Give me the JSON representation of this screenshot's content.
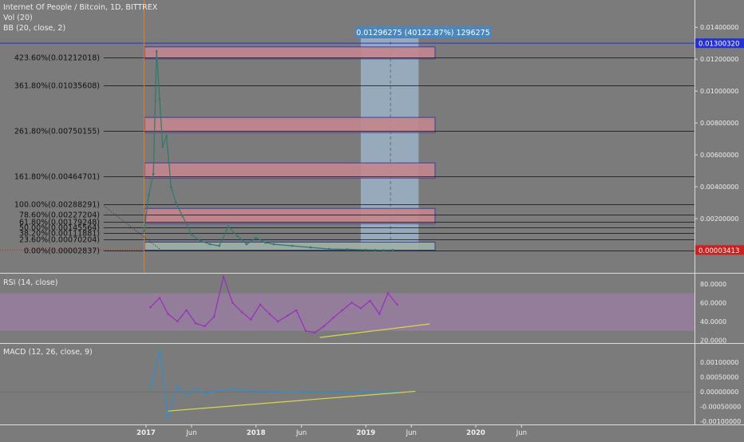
{
  "header": {
    "title": "Internet Of People / Bitcoin, 1D, BITTREX",
    "indicators": [
      "Vol (20)",
      "BB (20, close, 2)"
    ]
  },
  "measure_label": "0.01296275 (40122.87%) 1296275",
  "price_labels": {
    "top_line": "0.01300320",
    "current": "0.00003413"
  },
  "colors": {
    "background": "#7b7b7b",
    "fib_box": "#c4868e",
    "box_outline": "#2f3b9a",
    "measure_region": "#9bb3c7",
    "rsi_band": "#9e7faa",
    "rsi_line": "#9a2cc0",
    "trend_line": "#d8d84a",
    "price_candles": "#2c7a6e",
    "top_line": "#2431d6",
    "current_badge": "#cf1f1f",
    "measure_badge": "#4a86c0"
  },
  "chart_data": [
    {
      "type": "line",
      "panel": "price",
      "title": "Internet Of People / Bitcoin, 1D, BITTREX",
      "ytick_labels": [
        "0.01400000",
        "0.01200000",
        "0.01000000",
        "0.00800000",
        "0.00600000",
        "0.00400000",
        "0.00200000"
      ],
      "ylim": [
        0,
        0.0145
      ],
      "x_tick_labels": [
        "2017",
        "Jun",
        "2018",
        "Jun",
        "2019",
        "Jun",
        "2020",
        "Jun"
      ],
      "fib_levels": [
        {
          "label": "423.60%(0.01212018)",
          "value": 0.01212018
        },
        {
          "label": "361.80%(0.01035608)",
          "value": 0.01035608
        },
        {
          "label": "261.80%(0.00750155)",
          "value": 0.00750155
        },
        {
          "label": "161.80%(0.00464701)",
          "value": 0.00464701
        },
        {
          "label": "100.00%(0.00288291)",
          "value": 0.00288291
        },
        {
          "label": "78.60%(0.00227204)",
          "value": 0.00227204
        },
        {
          "label": "61.80%(0.00179248)",
          "value": 0.00179248
        },
        {
          "label": "50.00%(0.00145564)",
          "value": 0.00145564
        },
        {
          "label": "38.20%(0.00111881)",
          "value": 0.00111881
        },
        {
          "label": "23.60%(0.00070204)",
          "value": 0.00070204
        },
        {
          "label": "0.00%(0.00002837)",
          "value": 2.837e-05
        }
      ],
      "x": [
        "2016-12-25",
        "2017-01-10",
        "2017-01-25",
        "2017-02-05",
        "2017-02-15",
        "2017-02-25",
        "2017-03-10",
        "2017-03-25",
        "2017-04-10",
        "2017-05-01",
        "2017-06-01",
        "2017-07-01",
        "2017-08-01",
        "2017-09-01",
        "2017-10-01",
        "2017-11-01",
        "2017-12-01",
        "2018-01-01",
        "2018-02-01",
        "2018-03-01",
        "2018-05-01",
        "2018-07-01",
        "2018-09-01",
        "2018-11-01",
        "2019-01-01",
        "2019-02-01",
        "2019-03-01",
        "2019-04-01"
      ],
      "values": [
        0.0012,
        0.0035,
        0.0048,
        0.0125,
        0.0095,
        0.0065,
        0.0072,
        0.004,
        0.003,
        0.0022,
        0.001,
        0.0006,
        0.0004,
        0.0003,
        0.0015,
        0.0009,
        0.0004,
        0.0008,
        0.0005,
        0.0004,
        0.0003,
        0.0002,
        0.0001,
        8e-05,
        5e-05,
        4e-05,
        3e-05,
        3.413e-05
      ]
    },
    {
      "type": "line",
      "panel": "rsi",
      "title": "RSI (14, close)",
      "ytick_labels": [
        "80.0000",
        "60.0000",
        "40.0000",
        "20.0000"
      ],
      "ylim": [
        17,
        90
      ],
      "band": [
        30,
        70
      ],
      "x": [
        "2017-01",
        "2017-02",
        "2017-03",
        "2017-04",
        "2017-05",
        "2017-06",
        "2017-07",
        "2017-08",
        "2017-09",
        "2017-10",
        "2017-11",
        "2017-12",
        "2018-01",
        "2018-02",
        "2018-03",
        "2018-04",
        "2018-05",
        "2018-06",
        "2018-07",
        "2018-08",
        "2018-09",
        "2018-10",
        "2018-11",
        "2018-12",
        "2019-01",
        "2019-02",
        "2019-03",
        "2019-04"
      ],
      "values": [
        55,
        65,
        48,
        40,
        52,
        38,
        35,
        45,
        88,
        60,
        50,
        42,
        58,
        48,
        40,
        46,
        52,
        30,
        28,
        35,
        44,
        52,
        60,
        54,
        62,
        48,
        70,
        58
      ]
    },
    {
      "type": "line",
      "panel": "macd",
      "title": "MACD (12, 26, close, 9)",
      "ytick_labels": [
        "0.00100000",
        "0.00050000",
        "0.00000000",
        "-0.00050000",
        "-0.00100000"
      ],
      "ylim": [
        -0.00105,
        0.0016
      ],
      "x": [
        "2017-01",
        "2017-02",
        "2017-03",
        "2017-04",
        "2017-05",
        "2017-06",
        "2017-07",
        "2017-08",
        "2017-10",
        "2017-12",
        "2018-03",
        "2018-06",
        "2018-09",
        "2018-12",
        "2019-04"
      ],
      "values": [
        0.0001,
        0.0014,
        -0.0009,
        0.0002,
        -0.0001,
        0.0001,
        -5e-05,
        2e-05,
        0.0001,
        3e-05,
        1e-05,
        0.0,
        0.0,
        0.0,
        1e-05
      ]
    }
  ]
}
